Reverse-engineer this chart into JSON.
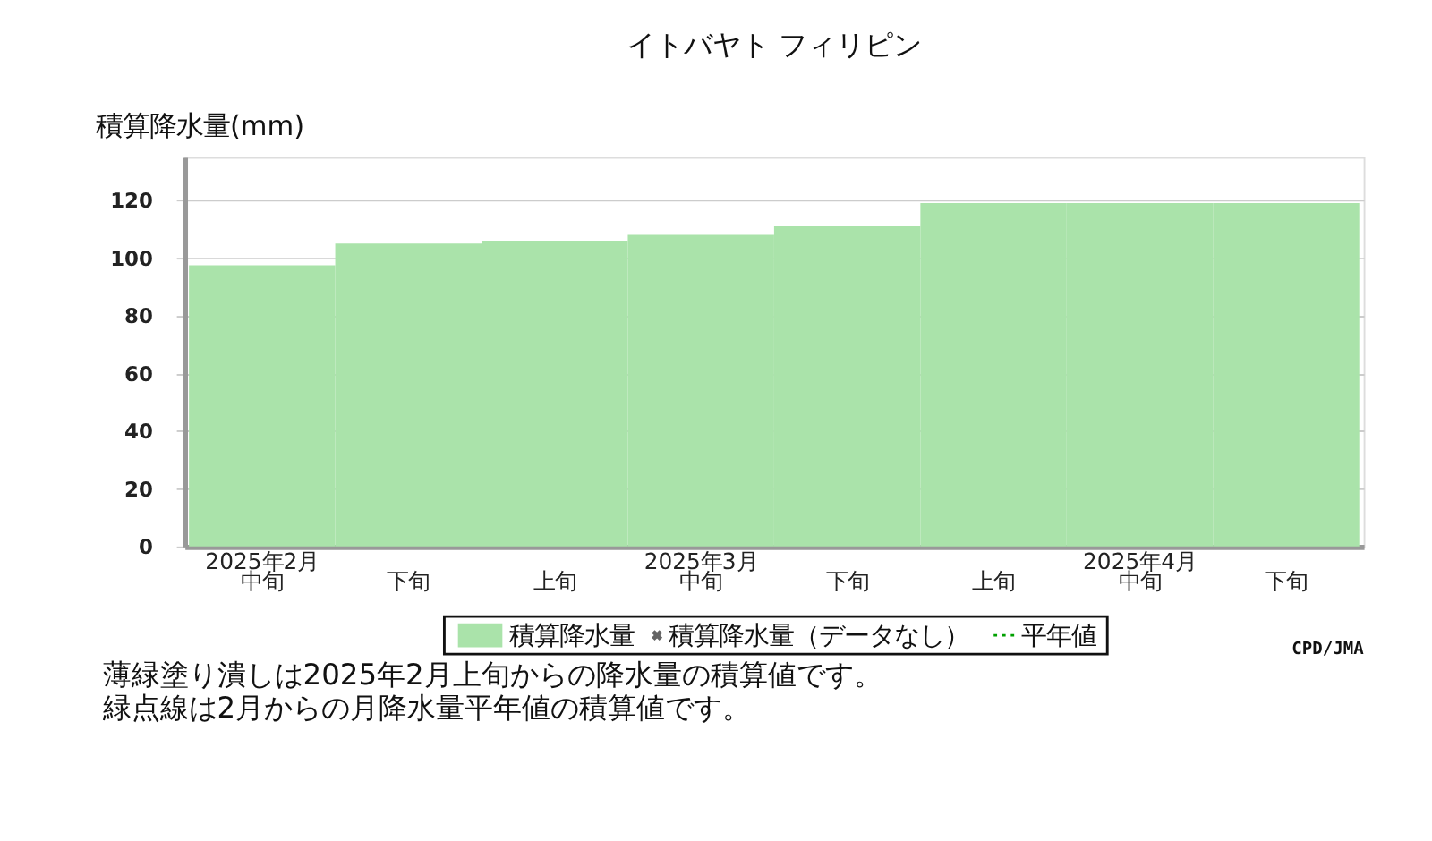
{
  "chart_data": {
    "type": "bar",
    "title": "イトバヤト フィリピン",
    "ylabel": "積算降水量(mm)",
    "categories": [
      "中旬",
      "下旬",
      "上旬",
      "中旬",
      "下旬",
      "上旬",
      "中旬",
      "下旬"
    ],
    "series": [
      {
        "name": "積算降水量",
        "color": "#aae3aa",
        "values": [
          97.5,
          105,
          106,
          108,
          111,
          119,
          119,
          119
        ]
      },
      {
        "name": "積算降水量（データなし）",
        "color": "#222222",
        "type": "scatter",
        "marker": "cross",
        "values": [
          null,
          null,
          null,
          null,
          null,
          null,
          null,
          null
        ]
      },
      {
        "name": "平年値",
        "color": "#00a000",
        "type": "line",
        "line_style": "dotted",
        "values": [
          null,
          null,
          null,
          null,
          null,
          null,
          null,
          null
        ]
      }
    ],
    "ylim": [
      0,
      135
    ],
    "yticks": [
      0,
      20,
      40,
      60,
      80,
      100,
      120
    ],
    "grid": "y",
    "legend": "bottom",
    "annotations": [
      "CPD/JMA",
      "薄緑塗り潰しは2025年2月上旬からの降水量の積算値です。",
      "緑点線は2月からの月降水量平年値の積算値です。",
      "2025年2月",
      "2025年3月",
      "2025年4月"
    ]
  }
}
